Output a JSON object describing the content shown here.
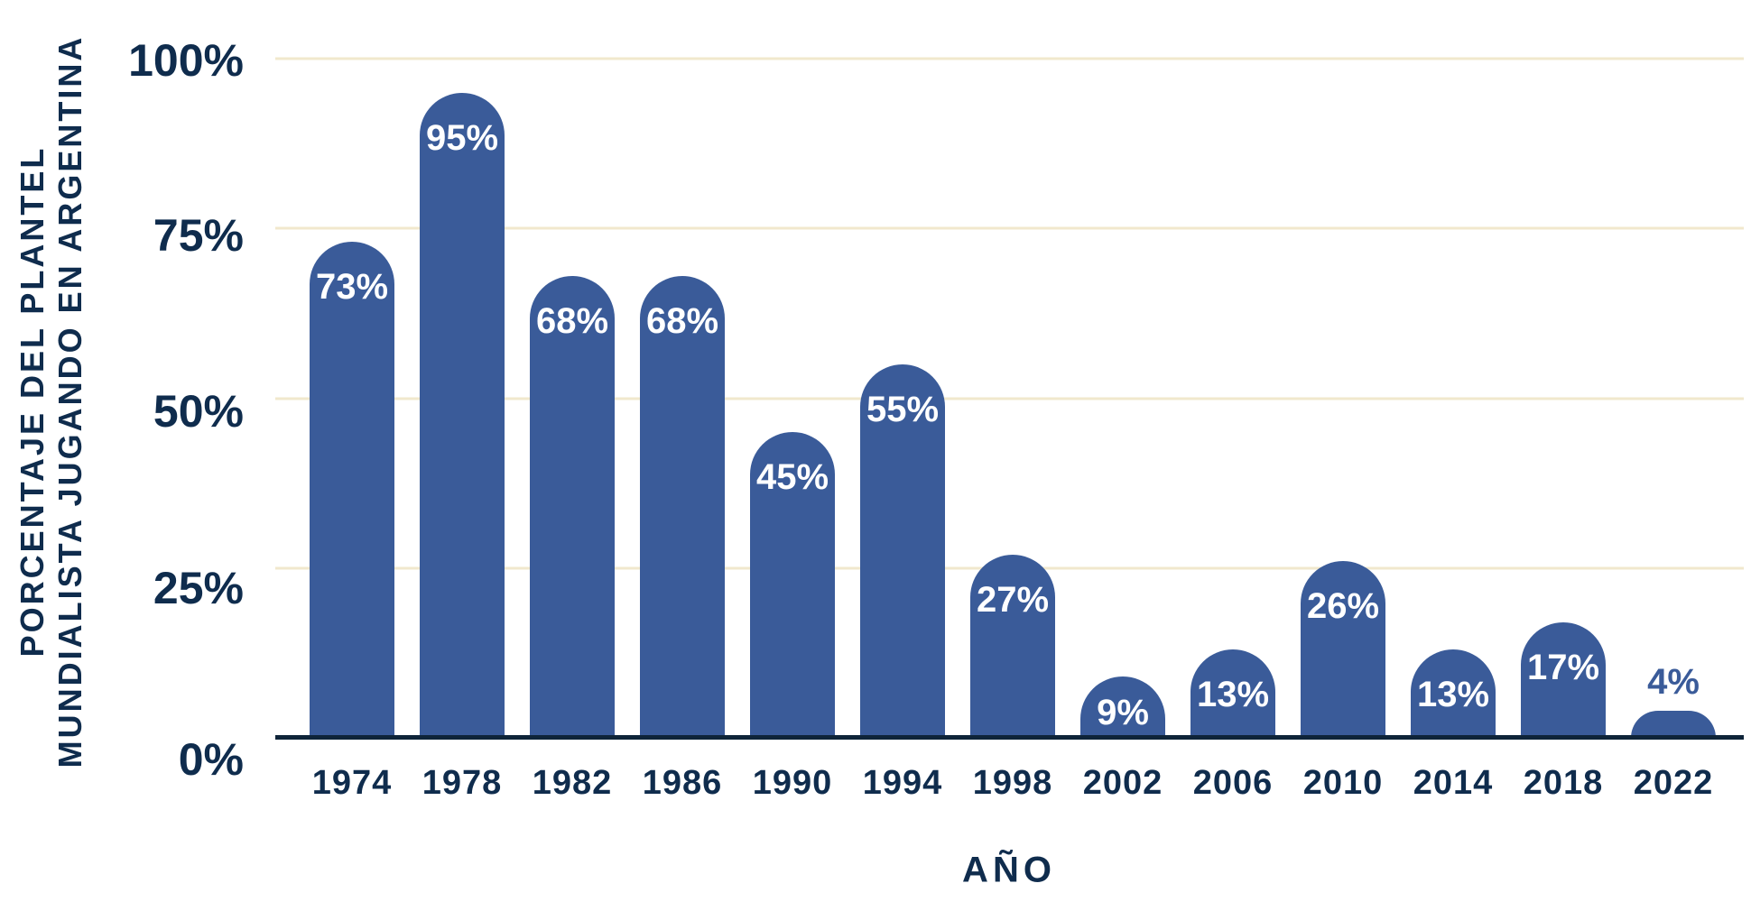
{
  "chart_data": {
    "type": "bar",
    "categories": [
      "1974",
      "1978",
      "1982",
      "1986",
      "1990",
      "1994",
      "1998",
      "2002",
      "2006",
      "2010",
      "2014",
      "2018",
      "2022"
    ],
    "values": [
      73,
      95,
      68,
      68,
      45,
      55,
      27,
      9,
      13,
      26,
      13,
      17,
      4
    ],
    "bar_labels": [
      "73%",
      "95%",
      "68%",
      "68%",
      "45%",
      "55%",
      "27%",
      "9%",
      "13%",
      "26%",
      "13%",
      "17%",
      "4%"
    ],
    "title": "",
    "xlabel": "AÑO",
    "ylabel_lines": [
      "PORCENTAJE DEL PLANTEL",
      "MUNDIALISTA JUGANDO EN ARGENTINA"
    ],
    "y_ticks": [
      {
        "pct": 0,
        "label": "0%"
      },
      {
        "pct": 25,
        "label": "25%"
      },
      {
        "pct": 50,
        "label": "50%"
      },
      {
        "pct": 75,
        "label": "75%"
      },
      {
        "pct": 100,
        "label": "100%"
      }
    ],
    "ylim": [
      0,
      100
    ],
    "grid": true,
    "legend": "none",
    "colors": {
      "bar": "#3A5B99",
      "grid": "#F1E8CD",
      "axis": "#0E2439",
      "text": "#0F2C4D",
      "label_inside": "#FFFFFF",
      "label_outside": "#3A5B99"
    }
  }
}
